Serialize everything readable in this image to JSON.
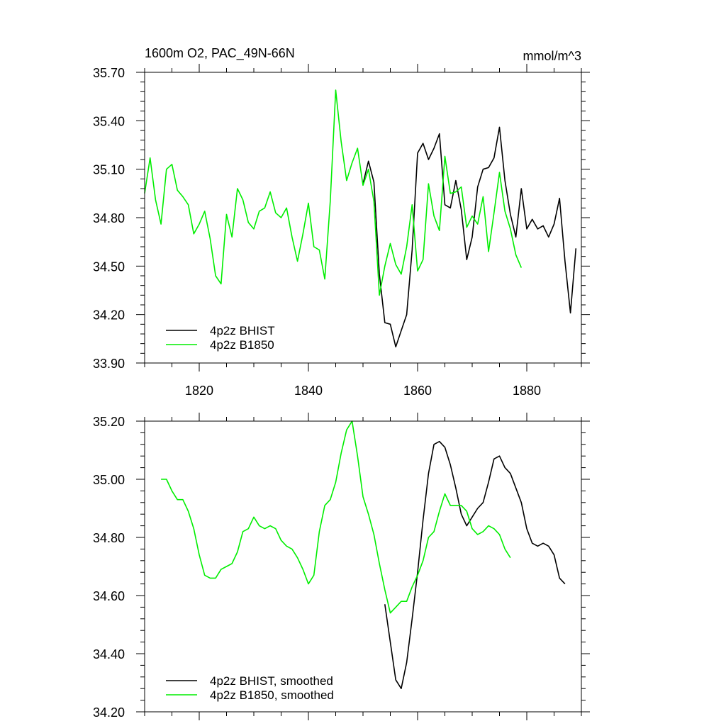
{
  "chart_data": [
    {
      "type": "line",
      "title": "1600m O2, PAC_49N-66N",
      "units": "mmol/m^3",
      "xlim": [
        1810,
        1890
      ],
      "ylim": [
        33.9,
        35.7
      ],
      "xticks": [
        1820,
        1840,
        1860,
        1880
      ],
      "xtick_labels": [
        "1820",
        "1840",
        "1860",
        "1880"
      ],
      "yticks": [
        33.9,
        34.2,
        34.5,
        34.8,
        35.1,
        35.4,
        35.7
      ],
      "ytick_labels": [
        "33.90",
        "34.20",
        "34.50",
        "34.80",
        "35.10",
        "35.40",
        "35.70"
      ],
      "legend_position": "bottom-left",
      "grid": false,
      "series": [
        {
          "name": "4p2z BHIST",
          "color": "#000000",
          "x": [
            1850,
            1851,
            1852,
            1853,
            1854,
            1855,
            1856,
            1857,
            1858,
            1859,
            1860,
            1861,
            1862,
            1863,
            1864,
            1865,
            1866,
            1867,
            1868,
            1869,
            1870,
            1871,
            1872,
            1873,
            1874,
            1875,
            1876,
            1877,
            1878,
            1879,
            1880,
            1881,
            1882,
            1883,
            1884,
            1885,
            1886,
            1887,
            1888,
            1889
          ],
          "values": [
            35.01,
            35.15,
            35.02,
            34.45,
            34.15,
            34.14,
            34.0,
            34.1,
            34.2,
            34.6,
            35.2,
            35.26,
            35.16,
            35.23,
            35.32,
            34.88,
            34.86,
            35.03,
            34.85,
            34.54,
            34.68,
            34.99,
            35.1,
            35.11,
            35.17,
            35.36,
            35.03,
            34.82,
            34.68,
            34.98,
            34.73,
            34.79,
            34.73,
            34.75,
            34.68,
            34.76,
            34.92,
            34.53,
            34.21,
            34.61
          ]
        },
        {
          "name": "4p2z B1850",
          "color": "#00ee00",
          "x": [
            1810,
            1811,
            1812,
            1813,
            1814,
            1815,
            1816,
            1817,
            1818,
            1819,
            1820,
            1821,
            1822,
            1823,
            1824,
            1825,
            1826,
            1827,
            1828,
            1829,
            1830,
            1831,
            1832,
            1833,
            1834,
            1835,
            1836,
            1837,
            1838,
            1839,
            1840,
            1841,
            1842,
            1843,
            1844,
            1845,
            1846,
            1847,
            1848,
            1849,
            1850,
            1851,
            1852,
            1853,
            1854,
            1855,
            1856,
            1857,
            1858,
            1859,
            1860,
            1861,
            1862,
            1863,
            1864,
            1865,
            1866,
            1867,
            1868,
            1869,
            1870,
            1871,
            1872,
            1873,
            1874,
            1875,
            1876,
            1877,
            1878,
            1879,
            1880
          ],
          "values": [
            34.95,
            35.17,
            34.91,
            34.76,
            35.1,
            35.13,
            34.97,
            34.93,
            34.88,
            34.7,
            34.76,
            34.84,
            34.67,
            34.44,
            34.39,
            34.82,
            34.68,
            34.98,
            34.91,
            34.77,
            34.73,
            34.84,
            34.86,
            34.96,
            34.83,
            34.8,
            34.86,
            34.68,
            34.53,
            34.7,
            34.89,
            34.62,
            34.6,
            34.42,
            34.9,
            35.59,
            35.27,
            35.03,
            35.14,
            35.23,
            35.0,
            35.1,
            34.9,
            34.32,
            34.5,
            34.64,
            34.51,
            34.45,
            34.62,
            34.88,
            34.47,
            34.54,
            35.01,
            34.81,
            34.72,
            35.18,
            34.95,
            34.96,
            34.99,
            34.74,
            34.81,
            34.76,
            34.93,
            34.59,
            34.83,
            35.08,
            34.84,
            34.73,
            34.57,
            34.49,
            null
          ]
        }
      ]
    },
    {
      "type": "line",
      "title": "",
      "xlim": [
        1810,
        1890
      ],
      "ylim": [
        34.2,
        35.2
      ],
      "xticks": [
        1820,
        1840,
        1860,
        1880
      ],
      "xtick_labels": [],
      "yticks": [
        34.2,
        34.4,
        34.6,
        34.8,
        35.0,
        35.2
      ],
      "ytick_labels": [
        "34.20",
        "34.40",
        "34.60",
        "34.80",
        "35.00",
        "35.20"
      ],
      "legend_position": "bottom-left",
      "grid": false,
      "series": [
        {
          "name": "4p2z BHIST, smoothed",
          "color": "#000000",
          "x": [
            1854,
            1855,
            1856,
            1857,
            1858,
            1859,
            1860,
            1861,
            1862,
            1863,
            1864,
            1865,
            1866,
            1867,
            1868,
            1869,
            1870,
            1871,
            1872,
            1873,
            1874,
            1875,
            1876,
            1877,
            1878,
            1879,
            1880,
            1881,
            1882,
            1883,
            1884,
            1885,
            1886,
            1887
          ],
          "values": [
            34.57,
            34.44,
            34.31,
            34.28,
            34.37,
            34.52,
            34.68,
            34.86,
            35.02,
            35.12,
            35.13,
            35.11,
            35.05,
            34.97,
            34.88,
            34.84,
            34.87,
            34.9,
            34.92,
            34.99,
            35.07,
            35.08,
            35.04,
            35.02,
            34.97,
            34.92,
            34.83,
            34.78,
            34.77,
            34.78,
            34.77,
            34.74,
            34.66,
            34.64
          ]
        },
        {
          "name": "4p2z B1850, smoothed",
          "color": "#00ee00",
          "x": [
            1813,
            1814,
            1815,
            1816,
            1817,
            1818,
            1819,
            1820,
            1821,
            1822,
            1823,
            1824,
            1825,
            1826,
            1827,
            1828,
            1829,
            1830,
            1831,
            1832,
            1833,
            1834,
            1835,
            1836,
            1837,
            1838,
            1839,
            1840,
            1841,
            1842,
            1843,
            1844,
            1845,
            1846,
            1847,
            1848,
            1849,
            1850,
            1851,
            1852,
            1853,
            1854,
            1855,
            1856,
            1857,
            1858,
            1859,
            1860,
            1861,
            1862,
            1863,
            1864,
            1865,
            1866,
            1867,
            1868,
            1869,
            1870,
            1871,
            1872,
            1873,
            1874,
            1875,
            1876,
            1877
          ],
          "values": [
            35.0,
            35.0,
            34.96,
            34.93,
            34.93,
            34.89,
            34.83,
            34.74,
            34.67,
            34.66,
            34.66,
            34.69,
            34.7,
            34.71,
            34.75,
            34.82,
            34.83,
            34.87,
            34.84,
            34.83,
            34.84,
            34.83,
            34.79,
            34.77,
            34.76,
            34.73,
            34.69,
            34.64,
            34.67,
            34.82,
            34.91,
            34.93,
            34.99,
            35.09,
            35.17,
            35.2,
            35.08,
            34.94,
            34.88,
            34.81,
            34.71,
            34.62,
            34.54,
            34.56,
            34.58,
            34.58,
            34.63,
            34.67,
            34.72,
            34.8,
            34.82,
            34.89,
            34.95,
            34.91,
            34.91,
            34.91,
            34.89,
            34.83,
            34.81,
            34.82,
            34.84,
            34.83,
            34.81,
            34.76,
            34.73
          ]
        }
      ]
    }
  ]
}
